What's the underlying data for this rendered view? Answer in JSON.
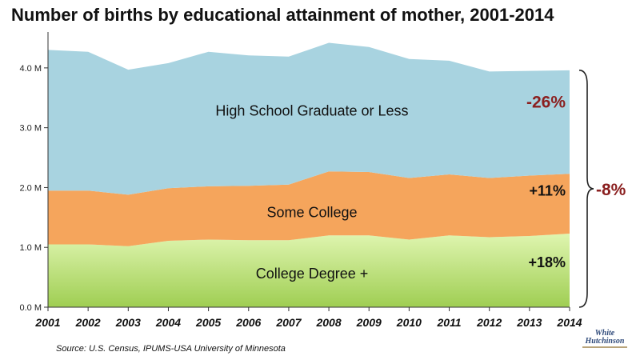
{
  "title": "Number of births by educational attainment of mother, 2001-2014",
  "source": "Source: U.S. Census, IPUMS-USA University of Minnesota",
  "logo": {
    "line1": "White",
    "line2": "Hutchinson"
  },
  "colors": {
    "high_school": "#a8d3e0",
    "some_college": "#f5a55c",
    "college_top": "#dff5b0",
    "college_bottom": "#9fce52",
    "pct_negative": "#8b2020",
    "pct_positive": "#111111",
    "axis": "#333333"
  },
  "chart_data": {
    "type": "area",
    "stacked": true,
    "x": [
      "2001",
      "2002",
      "2003",
      "2004",
      "2005",
      "2006",
      "2007",
      "2008",
      "2009",
      "2010",
      "2011",
      "2012",
      "2013",
      "2014"
    ],
    "yticks": [
      "0.0 M",
      "1.0 M",
      "2.0 M",
      "3.0 M",
      "4.0 M"
    ],
    "ylim": [
      0,
      4.6
    ],
    "series": [
      {
        "name": "College Degree +",
        "change": "+18%",
        "values": [
          1.05,
          1.05,
          1.02,
          1.11,
          1.13,
          1.12,
          1.12,
          1.2,
          1.2,
          1.13,
          1.2,
          1.17,
          1.19,
          1.23
        ]
      },
      {
        "name": "Some College",
        "change": "+11%",
        "values": [
          0.9,
          0.9,
          0.86,
          0.88,
          0.89,
          0.91,
          0.93,
          1.07,
          1.06,
          1.03,
          1.02,
          0.99,
          1.01,
          1.0
        ]
      },
      {
        "name": "High School Graduate or Less",
        "change": "-26%",
        "values": [
          2.35,
          2.32,
          2.09,
          2.09,
          2.25,
          2.18,
          2.14,
          2.15,
          2.09,
          1.99,
          1.9,
          1.78,
          1.75,
          1.73
        ]
      }
    ],
    "total_change": "-8%"
  }
}
